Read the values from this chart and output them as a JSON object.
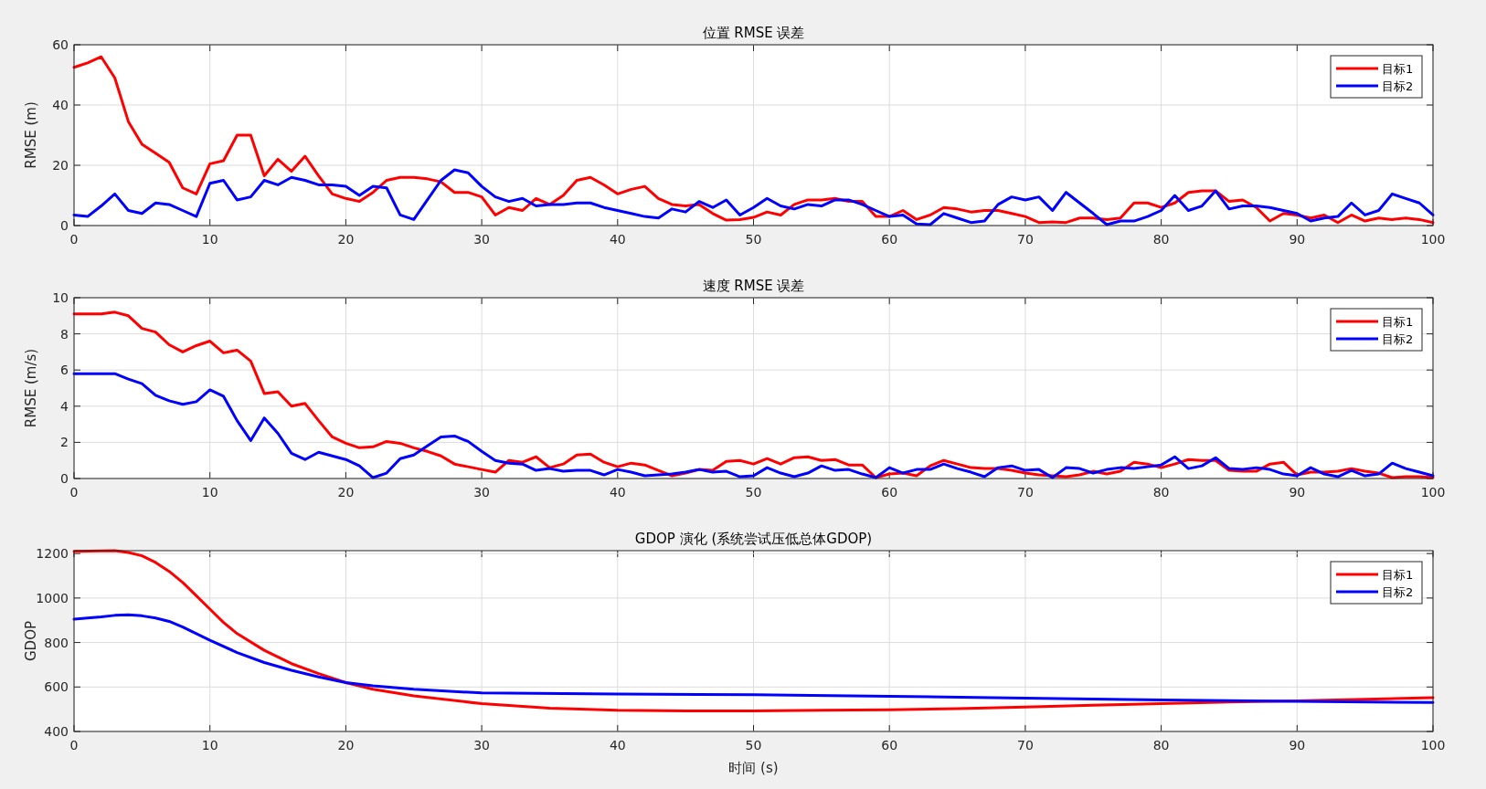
{
  "chart_data": [
    {
      "type": "line",
      "title": "位置 RMSE 误差",
      "ylabel": "RMSE (m)",
      "grid": true,
      "legend": "top right",
      "line_style": "solid",
      "xlim": [
        0,
        100
      ],
      "ylim": [
        0,
        60
      ],
      "xticks": [
        0,
        10,
        20,
        30,
        40,
        50,
        60,
        70,
        80,
        90,
        100
      ],
      "yticks": [
        0,
        20,
        40,
        60
      ],
      "x": [
        0,
        1,
        2,
        3,
        4,
        5,
        6,
        7,
        8,
        9,
        10,
        11,
        12,
        13,
        14,
        15,
        16,
        17,
        18,
        19,
        20,
        21,
        22,
        23,
        24,
        25,
        26,
        27,
        28,
        29,
        30,
        31,
        32,
        33,
        34,
        35,
        36,
        37,
        38,
        39,
        40,
        41,
        42,
        43,
        44,
        45,
        46,
        47,
        48,
        49,
        50,
        51,
        52,
        53,
        54,
        55,
        56,
        57,
        58,
        59,
        60,
        61,
        62,
        63,
        64,
        65,
        66,
        67,
        68,
        69,
        70,
        71,
        72,
        73,
        74,
        75,
        76,
        77,
        78,
        79,
        80,
        81,
        82,
        83,
        84,
        85,
        86,
        87,
        88,
        89,
        90,
        91,
        92,
        93,
        94,
        95,
        96,
        97,
        98,
        99,
        100
      ],
      "series": [
        {
          "name": "目标1",
          "color": "#ff0000",
          "values": [
            52.5,
            54,
            56,
            49,
            34.5,
            27,
            24,
            21,
            12.5,
            10.5,
            20.5,
            21.5,
            30,
            30,
            16.5,
            22,
            18,
            23,
            16.5,
            10.5,
            9,
            8,
            11,
            15,
            16,
            16,
            15.5,
            14.5,
            11,
            11,
            9.5,
            3.5,
            6,
            5,
            9,
            7,
            10,
            15,
            16,
            13.5,
            10.5,
            12,
            13,
            9,
            7,
            6.5,
            7,
            4,
            1.8,
            2,
            2.7,
            4.5,
            3.5,
            7,
            8.5,
            8.5,
            9,
            8,
            8,
            3,
            3,
            5,
            2,
            3.5,
            6,
            5.5,
            4.5,
            5,
            5,
            4,
            3,
            1,
            1.2,
            1,
            2.5,
            2.5,
            2,
            2.5,
            7.5,
            7.5,
            6,
            7.5,
            11,
            11.5,
            11.5,
            8,
            8.5,
            6,
            1.5,
            4,
            3.5,
            2.5,
            3.5,
            1,
            3.5,
            1.5,
            2.5,
            2,
            2.5,
            2,
            1
          ]
        },
        {
          "name": "目标2",
          "color": "#0000ff",
          "values": [
            3.5,
            3,
            6.5,
            10.5,
            5,
            4,
            7.5,
            7,
            5,
            3,
            14,
            15,
            8.5,
            9.5,
            15,
            13.5,
            16,
            15,
            13.5,
            13.5,
            13,
            10,
            13,
            12.5,
            3.5,
            2,
            8.5,
            15,
            18.5,
            17.5,
            13,
            9.5,
            8,
            9,
            6.5,
            7,
            7,
            7.5,
            7.5,
            6,
            5,
            4,
            3,
            2.5,
            5.5,
            4.5,
            8,
            6,
            8.5,
            3.5,
            6,
            9,
            6.5,
            5.5,
            7,
            6.5,
            8.5,
            8.5,
            7,
            5,
            3,
            3.5,
            0.5,
            0.3,
            4,
            2.5,
            1,
            1.5,
            7,
            9.5,
            8.5,
            9.5,
            5,
            11,
            7.5,
            4,
            0.3,
            1.5,
            1.5,
            3,
            5,
            10,
            5,
            6.5,
            11.5,
            5.5,
            6.5,
            6.5,
            6,
            5,
            4,
            1.5,
            2.5,
            3,
            7.5,
            3.5,
            5,
            10.5,
            9,
            7.5,
            3.5
          ]
        }
      ]
    },
    {
      "type": "line",
      "title": "速度 RMSE 误差",
      "ylabel": "RMSE (m/s)",
      "grid": true,
      "legend": "top right",
      "line_style": "solid",
      "xlim": [
        0,
        100
      ],
      "ylim": [
        0,
        10
      ],
      "xticks": [
        0,
        10,
        20,
        30,
        40,
        50,
        60,
        70,
        80,
        90,
        100
      ],
      "yticks": [
        0,
        2,
        4,
        6,
        8,
        10
      ],
      "x": [
        0,
        1,
        2,
        3,
        4,
        5,
        6,
        7,
        8,
        9,
        10,
        11,
        12,
        13,
        14,
        15,
        16,
        17,
        18,
        19,
        20,
        21,
        22,
        23,
        24,
        25,
        26,
        27,
        28,
        29,
        30,
        31,
        32,
        33,
        34,
        35,
        36,
        37,
        38,
        39,
        40,
        41,
        42,
        43,
        44,
        45,
        46,
        47,
        48,
        49,
        50,
        51,
        52,
        53,
        54,
        55,
        56,
        57,
        58,
        59,
        60,
        61,
        62,
        63,
        64,
        65,
        66,
        67,
        68,
        69,
        70,
        71,
        72,
        73,
        74,
        75,
        76,
        77,
        78,
        79,
        80,
        81,
        82,
        83,
        84,
        85,
        86,
        87,
        88,
        89,
        90,
        91,
        92,
        93,
        94,
        95,
        96,
        97,
        98,
        99,
        100
      ],
      "series": [
        {
          "name": "目标1",
          "color": "#ff0000",
          "values": [
            9.1,
            9.1,
            9.1,
            9.2,
            9.0,
            8.3,
            8.1,
            7.4,
            7.0,
            7.35,
            7.6,
            6.95,
            7.1,
            6.5,
            4.7,
            4.8,
            4.0,
            4.15,
            3.2,
            2.3,
            1.95,
            1.7,
            1.75,
            2.05,
            1.95,
            1.7,
            1.5,
            1.25,
            0.8,
            0.65,
            0.5,
            0.35,
            1.0,
            0.9,
            1.2,
            0.6,
            0.8,
            1.3,
            1.35,
            0.9,
            0.65,
            0.85,
            0.75,
            0.45,
            0.15,
            0.3,
            0.5,
            0.45,
            0.95,
            1.0,
            0.8,
            1.1,
            0.8,
            1.15,
            1.2,
            1.0,
            1.05,
            0.75,
            0.75,
            0.05,
            0.25,
            0.3,
            0.15,
            0.7,
            1.0,
            0.8,
            0.6,
            0.55,
            0.55,
            0.45,
            0.3,
            0.2,
            0.15,
            0.1,
            0.2,
            0.4,
            0.25,
            0.4,
            0.9,
            0.8,
            0.6,
            0.8,
            1.05,
            1.0,
            1.0,
            0.45,
            0.4,
            0.4,
            0.8,
            0.9,
            0.2,
            0.35,
            0.35,
            0.4,
            0.55,
            0.4,
            0.3,
            0.05,
            0.1,
            0.1,
            0.05
          ]
        },
        {
          "name": "目标2",
          "color": "#0000ff",
          "values": [
            5.8,
            5.8,
            5.8,
            5.8,
            5.5,
            5.25,
            4.6,
            4.3,
            4.1,
            4.25,
            4.9,
            4.55,
            3.2,
            2.1,
            3.35,
            2.5,
            1.4,
            1.05,
            1.45,
            1.25,
            1.05,
            0.7,
            0.05,
            0.3,
            1.1,
            1.3,
            1.8,
            2.3,
            2.35,
            2.05,
            1.5,
            1.0,
            0.85,
            0.8,
            0.45,
            0.55,
            0.4,
            0.45,
            0.45,
            0.2,
            0.5,
            0.35,
            0.15,
            0.2,
            0.25,
            0.35,
            0.5,
            0.35,
            0.4,
            0.1,
            0.15,
            0.6,
            0.3,
            0.1,
            0.3,
            0.7,
            0.45,
            0.5,
            0.25,
            0.05,
            0.6,
            0.3,
            0.5,
            0.5,
            0.8,
            0.55,
            0.35,
            0.1,
            0.6,
            0.7,
            0.45,
            0.5,
            0.05,
            0.6,
            0.55,
            0.3,
            0.5,
            0.6,
            0.55,
            0.65,
            0.75,
            1.2,
            0.55,
            0.7,
            1.15,
            0.55,
            0.5,
            0.6,
            0.5,
            0.25,
            0.15,
            0.6,
            0.25,
            0.1,
            0.45,
            0.15,
            0.25,
            0.85,
            0.55,
            0.35,
            0.15
          ]
        }
      ]
    },
    {
      "type": "line",
      "title": "GDOP 演化 (系统尝试压低总体GDOP)",
      "xlabel": "时间 (s)",
      "ylabel": "GDOP",
      "grid": true,
      "legend": "top right",
      "line_style": "solid",
      "xlim": [
        0,
        100
      ],
      "ylim": [
        400,
        1213
      ],
      "xticks": [
        0,
        10,
        20,
        30,
        40,
        50,
        60,
        70,
        80,
        90,
        100
      ],
      "yticks": [
        400,
        600,
        800,
        1000,
        1200
      ],
      "series": [
        {
          "name": "目标1",
          "color": "#ff0000",
          "x": [
            0,
            2,
            3,
            4,
            5,
            6,
            7,
            8,
            9,
            10,
            11,
            12,
            14,
            16,
            18,
            20,
            22,
            25,
            30,
            35,
            40,
            45,
            50,
            55,
            60,
            65,
            70,
            75,
            80,
            85,
            90,
            95,
            100
          ],
          "values": [
            1210,
            1212,
            1213,
            1205,
            1190,
            1160,
            1120,
            1070,
            1010,
            950,
            890,
            840,
            765,
            705,
            660,
            620,
            590,
            560,
            525,
            505,
            495,
            492,
            492,
            495,
            498,
            503,
            510,
            518,
            525,
            532,
            538,
            545,
            552
          ]
        },
        {
          "name": "目标2",
          "color": "#0000ff",
          "x": [
            0,
            2,
            3,
            4,
            5,
            6,
            7,
            8,
            9,
            10,
            12,
            14,
            16,
            18,
            20,
            22,
            25,
            30,
            40,
            50,
            60,
            70,
            80,
            90,
            100
          ],
          "values": [
            905,
            915,
            922,
            925,
            920,
            910,
            895,
            870,
            840,
            810,
            755,
            710,
            675,
            645,
            620,
            605,
            590,
            573,
            568,
            565,
            558,
            550,
            542,
            535,
            530
          ]
        }
      ]
    }
  ]
}
